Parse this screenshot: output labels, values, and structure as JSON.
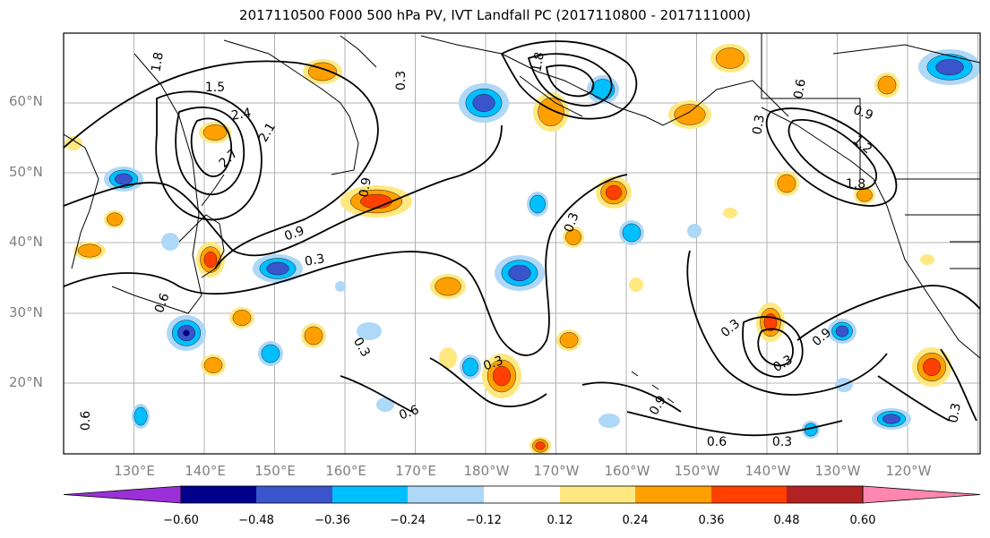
{
  "title": "2017110500 F000 500 hPa PV, IVT Landfall PC (2017110800 - 2017111000)",
  "latitude_labels": [
    "60°N",
    "50°N",
    "40°N",
    "30°N",
    "20°N"
  ],
  "longitude_labels": [
    "130°E",
    "140°E",
    "150°E",
    "160°E",
    "170°E",
    "180°W",
    "170°W",
    "160°W",
    "150°W",
    "140°W",
    "130°W",
    "120°W"
  ],
  "colorbar": {
    "tick_labels": [
      "−0.60",
      "−0.48",
      "−0.36",
      "−0.24",
      "−0.12",
      "0.12",
      "0.24",
      "0.36",
      "0.48",
      "0.60"
    ],
    "colors": [
      "#9b30d9",
      "#00008b",
      "#3a55cc",
      "#00bfff",
      "#add8f7",
      "#ffffff",
      "#ffe880",
      "#ffa000",
      "#ff4000",
      "#b22222",
      "#ff86b0"
    ]
  },
  "contour_labels": [
    "1.8",
    "1.5",
    "2.4",
    "2.1",
    "2.7",
    "0.9",
    "0.3",
    "0.6",
    "0.3",
    "0.9",
    "0.3",
    "0.3",
    "0.9",
    "0.6",
    "0.3",
    "0.3",
    "0.3",
    "0.9",
    "0.6",
    "0.3",
    "1.8",
    "0.9",
    "1.2",
    "1.8",
    "0.3",
    "0.6",
    "0.3",
    "0.6"
  ],
  "colors": {
    "positive": [
      "#ffe880",
      "#ffa000",
      "#ff4000",
      "#b22222"
    ],
    "negative": [
      "#add8f7",
      "#00bfff",
      "#3a55cc",
      "#00008b"
    ]
  }
}
